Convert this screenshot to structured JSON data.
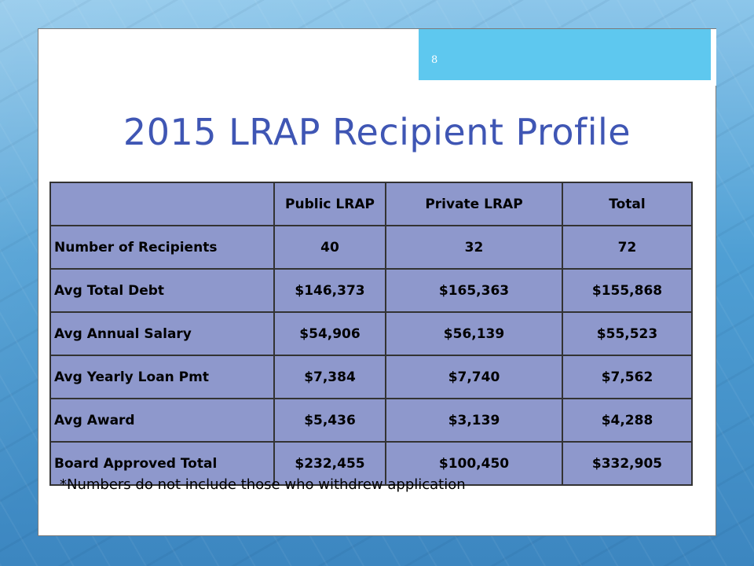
{
  "slide": {
    "page_number": "8",
    "title": "2015 LRAP Recipient Profile",
    "footnote": "*Numbers do not include those who withdrew application"
  },
  "table": {
    "headers": [
      "",
      "Public LRAP",
      "Private LRAP",
      "Total"
    ],
    "rows": [
      {
        "label": "Number of Recipients",
        "public": "40",
        "private": "32",
        "total": "72"
      },
      {
        "label": "Avg Total Debt",
        "public": "$146,373",
        "private": "$165,363",
        "total": "$155,868"
      },
      {
        "label": "Avg Annual Salary",
        "public": "$54,906",
        "private": "$56,139",
        "total": "$55,523"
      },
      {
        "label": "Avg Yearly Loan Pmt",
        "public": "$7,384",
        "private": "$7,740",
        "total": "$7,562"
      },
      {
        "label": "Avg Award",
        "public": "$5,436",
        "private": "$3,139",
        "total": "$4,288"
      },
      {
        "label": "Board Approved Total",
        "public": "$232,455",
        "private": "$100,450",
        "total": "$332,905"
      }
    ]
  },
  "colors": {
    "title": "#3f56b4",
    "table_fill": "#8e98cc",
    "tab_accent": "#5ec8ef",
    "background": "#4f9fd4"
  }
}
